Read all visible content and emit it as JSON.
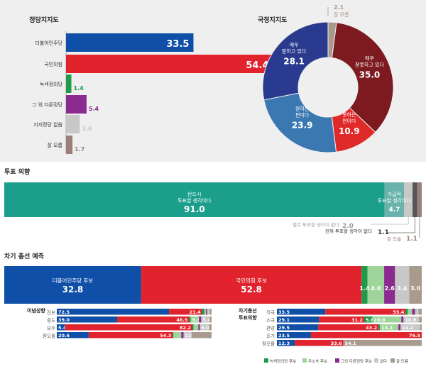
{
  "colors": {
    "dem": "#0f4fa8",
    "ppp": "#e1232d",
    "green": "#1f9a4a",
    "other": "#8a2b8f",
    "none": "#c8c8c8",
    "dk": "#9a8078",
    "dem_pie": "#2a3a8e",
    "ppp_pie": "#7d1a1f",
    "ppp_somewhat": "#e02a2a",
    "dem_somewhat": "#3b78b2",
    "tan": "#a89a8c",
    "teal": "#69b3ac",
    "light_green": "#9fd49a",
    "gray_dark": "#555555"
  },
  "chart_data": [
    {
      "id": "party_support",
      "type": "bar",
      "title": "정당지지도",
      "categories": [
        "더불어민주당",
        "국민의힘",
        "녹색정의당",
        "그 외 다른정당",
        "지지정당 없음",
        "잘 모름"
      ],
      "values": [
        33.5,
        54.4,
        1.4,
        5.4,
        3.6,
        1.7
      ],
      "value_labels": [
        "33.5",
        "54.4",
        "1.4",
        "5.4",
        "3.6",
        "1.7"
      ],
      "colors": [
        "#0f4fa8",
        "#e1232d",
        "#1f9a4a",
        "#8a2b8f",
        "#c8c8c8",
        "#9a8078"
      ],
      "xlim": [
        0,
        56
      ]
    },
    {
      "id": "state_affairs",
      "type": "pie",
      "title": "국정지지도",
      "slices": [
        {
          "label": "잘 모름",
          "value": 2.1,
          "color": "#a89a8c",
          "text": "2.1"
        },
        {
          "label": "매우 잘못하고 있다",
          "value": 35.0,
          "color": "#7d1a1f",
          "text": "35.0"
        },
        {
          "label": "못하는 편이다",
          "value": 10.9,
          "color": "#e02a2a",
          "text": "10.9"
        },
        {
          "label": "잘하는 편이다",
          "value": 23.9,
          "color": "#3b78b2",
          "text": "23.9"
        },
        {
          "label": "매우 잘하고 있다",
          "value": 28.1,
          "color": "#2a3a8e",
          "text": "28.1"
        }
      ],
      "display_labels": [
        "매우",
        "잘하고 있다",
        "매우",
        "잘못하고 있다",
        "잘하는",
        "편이다",
        "못하는",
        "편이다",
        "잘 모름"
      ]
    },
    {
      "id": "vote_intention",
      "type": "bar",
      "title": "투표 의향",
      "series": [
        {
          "name": "반드시 투표할 생각이다",
          "value": 91.0,
          "color": "#1b9f8c"
        },
        {
          "name": "가급적 투표할 생각이다",
          "value": 4.7,
          "color": "#69b3ac"
        },
        {
          "name": "별로 투표할 생각이 없다",
          "value": 2.0,
          "color": "#c8c8c8"
        },
        {
          "name": "전혀 투표할 생각이 없다",
          "value": 1.1,
          "color": "#555555"
        },
        {
          "name": "잘 모름",
          "value": 1.1,
          "color": "#9a8078"
        }
      ],
      "main_label": [
        "반드시",
        "투표할 생각이다",
        "91.0"
      ],
      "second_label": [
        "가급적",
        "투표할 생각이다",
        "4.7"
      ],
      "callouts": [
        {
          "label": "별로 투표할 생각이 없다",
          "value": "2.0"
        },
        {
          "label": "전혀 투표할 생각이 없다",
          "value": "1.1"
        },
        {
          "label": "잘 모름",
          "value": "1.1"
        }
      ]
    },
    {
      "id": "next_election",
      "type": "bar",
      "title": "차기 총선 예측",
      "series": [
        {
          "name": "더불어민주당 후보",
          "value": 32.8,
          "color": "#0f4fa8"
        },
        {
          "name": "국민의힘 후보",
          "value": 52.8,
          "color": "#e1232d"
        },
        {
          "name": "녹색정의당 후보",
          "value": 1.4,
          "color": "#1f9a4a"
        },
        {
          "name": "무소속 후보",
          "value": 4.0,
          "color": "#9fd49a"
        },
        {
          "name": "그외 다른정당 후보",
          "value": 2.6,
          "color": "#8a2b8f"
        },
        {
          "name": "없다",
          "value": 3.4,
          "color": "#c8c8c8"
        },
        {
          "name": "잘 모름",
          "value": 3.0,
          "color": "#a89a8c"
        }
      ],
      "labels": [
        "더불어민주당 후보",
        "32.8",
        "국민의힘 후보",
        "52.8",
        "1.4",
        "4.0",
        "2.6",
        "3.4",
        "3.0"
      ]
    },
    {
      "id": "ideology_breakdown",
      "type": "bar",
      "title": "이념성향",
      "categories": [
        "진보",
        "중도",
        "보수",
        "잘모름"
      ],
      "rows": [
        [
          72.5,
          21.4,
          1.5,
          1.0,
          0.8,
          1.6,
          1.2
        ],
        [
          39.0,
          46.5,
          1.0,
          5.3,
          1.5,
          5.4,
          1.3
        ],
        [
          5.4,
          82.2,
          0.8,
          3.0,
          1.0,
          6.0,
          1.6
        ],
        [
          20.6,
          54.3,
          0.5,
          5.0,
          1.5,
          5.2,
          12.9
        ]
      ],
      "labels": [
        [
          "72.5",
          "21.4"
        ],
        [
          "39.0",
          "46.5",
          "5.3",
          "5.4"
        ],
        [
          "5.4",
          "82.2",
          "6.0"
        ],
        [
          "20.6",
          "54.3",
          "12.9"
        ]
      ]
    },
    {
      "id": "next_election_breakdown",
      "type": "bar",
      "title": "차기총선 투표의향",
      "categories": [
        "적극",
        "소극",
        "관망",
        "포기",
        "잘모름"
      ],
      "rows": [
        [
          33.5,
          55.4,
          1.5,
          3.0,
          2.0,
          2.4,
          2.2
        ],
        [
          29.1,
          31.2,
          5.6,
          20.0,
          1.5,
          10.8,
          1.8
        ],
        [
          29.5,
          43.2,
          1.0,
          13.2,
          1.5,
          14.2,
          1.0
        ],
        [
          23.5,
          76.5,
          0,
          0,
          0,
          0,
          0
        ],
        [
          12.3,
          33.6,
          0,
          0,
          0,
          0,
          54.1
        ]
      ],
      "labels": [
        [
          "33.5",
          "55.4"
        ],
        [
          "29.1",
          "31.2",
          "5.6",
          "20.0",
          "10.8"
        ],
        [
          "29.5",
          "43.2",
          "13.2",
          "14.2"
        ],
        [
          "23.5",
          "76.5"
        ],
        [
          "12.3",
          "33.6",
          "54.1"
        ]
      ]
    }
  ],
  "legend": [
    {
      "label": "녹색정의당 후보",
      "color": "#1f9a4a"
    },
    {
      "label": "무소속 후보",
      "color": "#9fd49a"
    },
    {
      "label": "그외 다른정당 후보",
      "color": "#8a2b8f"
    },
    {
      "label": "없다",
      "color": "#c8c8c8"
    },
    {
      "label": "잘 모름",
      "color": "#a89a8c"
    }
  ]
}
